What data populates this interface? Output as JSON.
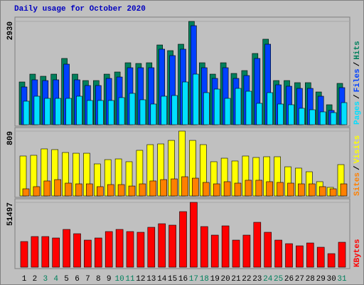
{
  "chart_data": [
    {
      "type": "bar",
      "title": "Daily usage for October 2020",
      "legend_separator": "/",
      "ylim": [
        0,
        2930
      ],
      "yticks": [
        2930
      ],
      "series": [
        {
          "name": "Pages",
          "color": "#00e0ff",
          "values": [
            667,
            808,
            747,
            747,
            747,
            808,
            687,
            687,
            687,
            768,
            889,
            707,
            586,
            808,
            828,
            1212,
            1434,
            909,
            1010,
            747,
            1030,
            949,
            606,
            909,
            586,
            566,
            465,
            424,
            364,
            343,
            626
          ]
        },
        {
          "name": "Files",
          "color": "#0040ff",
          "values": [
            1071,
            1273,
            1252,
            1273,
            1717,
            1273,
            1111,
            1111,
            1313,
            1353,
            1616,
            1616,
            1616,
            2142,
            1960,
            2142,
            2808,
            1616,
            1313,
            1616,
            1313,
            1394,
            1879,
            2283,
            1131,
            1091,
            1030,
            1030,
            808,
            404,
            1051
          ]
        },
        {
          "name": "Hits",
          "color": "#00805c",
          "values": [
            1212,
            1434,
            1374,
            1434,
            1879,
            1434,
            1252,
            1252,
            1434,
            1495,
            1757,
            1737,
            1757,
            2262,
            2101,
            2283,
            2930,
            1757,
            1434,
            1757,
            1454,
            1535,
            2020,
            2425,
            1252,
            1252,
            1192,
            1192,
            929,
            566,
            1172
          ]
        }
      ]
    },
    {
      "type": "bar",
      "legend_separator": "/",
      "ylim": [
        0,
        809
      ],
      "yticks": [
        809
      ],
      "series": [
        {
          "name": "Sites",
          "color": "#ff8000",
          "values": [
            89,
            116,
            187,
            204,
            160,
            151,
            151,
            116,
            142,
            142,
            124,
            151,
            187,
            204,
            213,
            240,
            222,
            169,
            151,
            178,
            160,
            196,
            196,
            178,
            169,
            160,
            151,
            151,
            116,
            89,
            151
          ]
        },
        {
          "name": "Visits",
          "color": "#ffff00",
          "values": [
            498,
            507,
            587,
            578,
            542,
            533,
            533,
            400,
            453,
            462,
            427,
            569,
            640,
            649,
            693,
            809,
            693,
            640,
            427,
            471,
            436,
            498,
            480,
            489,
            489,
            364,
            347,
            302,
            178,
            107,
            391
          ]
        }
      ]
    },
    {
      "type": "bar",
      "ylim": [
        0,
        51497
      ],
      "yticks": [
        51497
      ],
      "categories": [
        "1",
        "2",
        "3",
        "4",
        "5",
        "6",
        "7",
        "8",
        "9",
        "10",
        "11",
        "12",
        "13",
        "14",
        "15",
        "16",
        "17",
        "18",
        "19",
        "20",
        "21",
        "22",
        "23",
        "24",
        "25",
        "26",
        "27",
        "28",
        "29",
        "30",
        "31"
      ],
      "category_colors": [
        "#000000",
        "#000000",
        "#00805c",
        "#00805c",
        "#000000",
        "#000000",
        "#000000",
        "#000000",
        "#000000",
        "#00805c",
        "#00805c",
        "#000000",
        "#000000",
        "#000000",
        "#000000",
        "#000000",
        "#00805c",
        "#00805c",
        "#000000",
        "#000000",
        "#000000",
        "#000000",
        "#000000",
        "#00805c",
        "#00805c",
        "#000000",
        "#000000",
        "#000000",
        "#000000",
        "#000000",
        "#00805c"
      ],
      "series": [
        {
          "name": "KBytes",
          "color": "#ff0000",
          "values": [
            20372,
            24334,
            24334,
            23202,
            29993,
            26597,
            21504,
            23202,
            28295,
            29993,
            28295,
            27729,
            31690,
            34520,
            33388,
            44141,
            51497,
            32256,
            25465,
            32822,
            21504,
            25465,
            35651,
            27729,
            21504,
            18675,
            16977,
            19240,
            15843,
            10752,
            19806
          ]
        }
      ]
    }
  ]
}
